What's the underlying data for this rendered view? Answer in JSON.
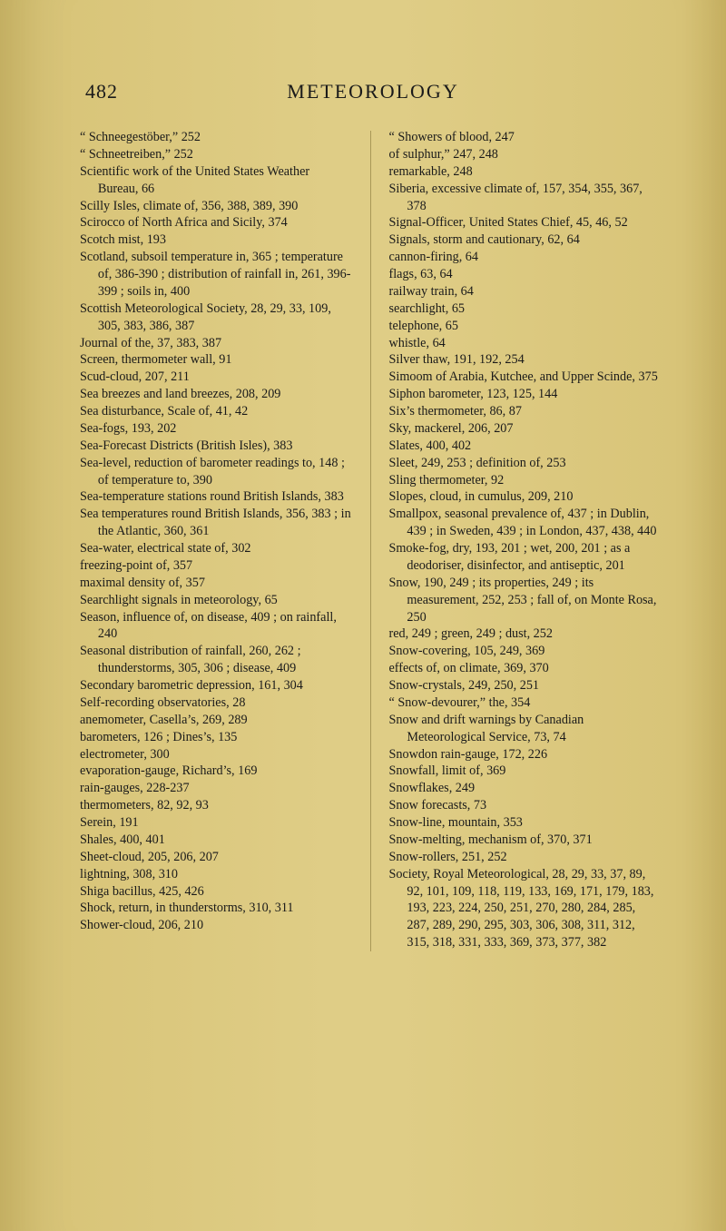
{
  "page_number": "482",
  "running_title": "METEOROLOGY",
  "left_column": [
    "“ Schneegestöber,” 252",
    "“ Schneetreiben,” 252",
    "Scientific work of the United States Weather Bureau, 66",
    "Scilly Isles, climate of, 356, 388, 389, 390",
    "Scirocco of North Africa and Sicily, 374",
    "Scotch mist, 193",
    "Scotland, subsoil temperature in, 365 ; temperature of, 386-390 ; distribution of rainfall in, 261, 396-399 ; soils in, 400",
    "Scottish Meteorological Society, 28, 29, 33, 109, 305, 383, 386, 387",
    "Journal of the, 37, 383, 387",
    "Screen, thermometer wall, 91",
    "Scud-cloud, 207, 211",
    "Sea breezes and land breezes, 208, 209",
    "Sea disturbance, Scale of, 41, 42",
    "Sea-fogs, 193, 202",
    "Sea-Forecast Districts (British Isles), 383",
    "Sea-level, reduction of barometer readings to, 148 ; of temperature to, 390",
    "Sea-temperature stations round British Islands, 383",
    "Sea temperatures round British Islands, 356, 383 ; in the Atlantic, 360, 361",
    "Sea-water, electrical state of, 302",
    "freezing-point of, 357",
    "maximal density of, 357",
    "Searchlight signals in meteorology, 65",
    "Season, influence of, on disease, 409 ; on rainfall, 240",
    "Seasonal distribution of rainfall, 260, 262 ; thunderstorms, 305, 306 ; disease, 409",
    "Secondary barometric depression, 161, 304",
    "Self-recording observatories, 28",
    "anemometer, Casella’s, 269, 289",
    "barometers, 126 ; Dines’s, 135",
    "electrometer, 300",
    "evaporation-gauge, Richard’s, 169",
    "rain-gauges, 228-237",
    "thermometers, 82, 92, 93",
    "Serein, 191",
    "Shales, 400, 401",
    "Sheet-cloud, 205, 206, 207",
    "lightning, 308, 310",
    "Shiga bacillus, 425, 426",
    "Shock, return, in thunderstorms, 310, 311",
    "Shower-cloud, 206, 210"
  ],
  "right_column": [
    "“ Showers of blood, 247",
    "of sulphur,” 247, 248",
    "remarkable, 248",
    "Siberia, excessive climate of, 157, 354, 355, 367, 378",
    "Signal-Officer, United States Chief, 45, 46, 52",
    "Signals, storm and cautionary, 62, 64",
    "cannon-firing, 64",
    "flags, 63, 64",
    "railway train, 64",
    "searchlight, 65",
    "telephone, 65",
    "whistle, 64",
    "Silver thaw, 191, 192, 254",
    "Simoom of Arabia, Kutchee, and Upper Scinde, 375",
    "Siphon barometer, 123, 125, 144",
    "Six’s thermometer, 86, 87",
    "Sky, mackerel, 206, 207",
    "Slates, 400, 402",
    "Sleet, 249, 253 ; definition of, 253",
    "Sling thermometer, 92",
    "Slopes, cloud, in cumulus, 209, 210",
    "Smallpox, seasonal prevalence of, 437 ; in Dublin, 439 ; in Sweden, 439 ; in London, 437, 438, 440",
    "Smoke-fog, dry, 193, 201 ; wet, 200, 201 ; as a deodoriser, disinfector, and antiseptic, 201",
    "Snow, 190, 249 ; its properties, 249 ; its measurement, 252, 253 ; fall of, on Monte Rosa, 250",
    "red, 249 ; green, 249 ; dust, 252",
    "Snow-covering, 105, 249, 369",
    "effects of, on climate, 369, 370",
    "Snow-crystals, 249, 250, 251",
    "“ Snow-devourer,” the, 354",
    "Snow and drift warnings by Canadian Meteorological Service, 73, 74",
    "Snowdon rain-gauge, 172, 226",
    "Snowfall, limit of, 369",
    "Snowflakes, 249",
    "Snow forecasts, 73",
    "Snow-line, mountain, 353",
    "Snow-melting, mechanism of, 370, 371",
    "Snow-rollers, 251, 252",
    "Society, Royal Meteorological, 28, 29, 33, 37, 89, 92, 101, 109, 118, 119, 133, 169, 171, 179, 183, 193, 223, 224, 250, 251, 270, 280, 284, 285, 287, 289, 290, 295, 303, 306, 308, 311, 312, 315, 318, 331, 333, 369, 373, 377, 382"
  ]
}
